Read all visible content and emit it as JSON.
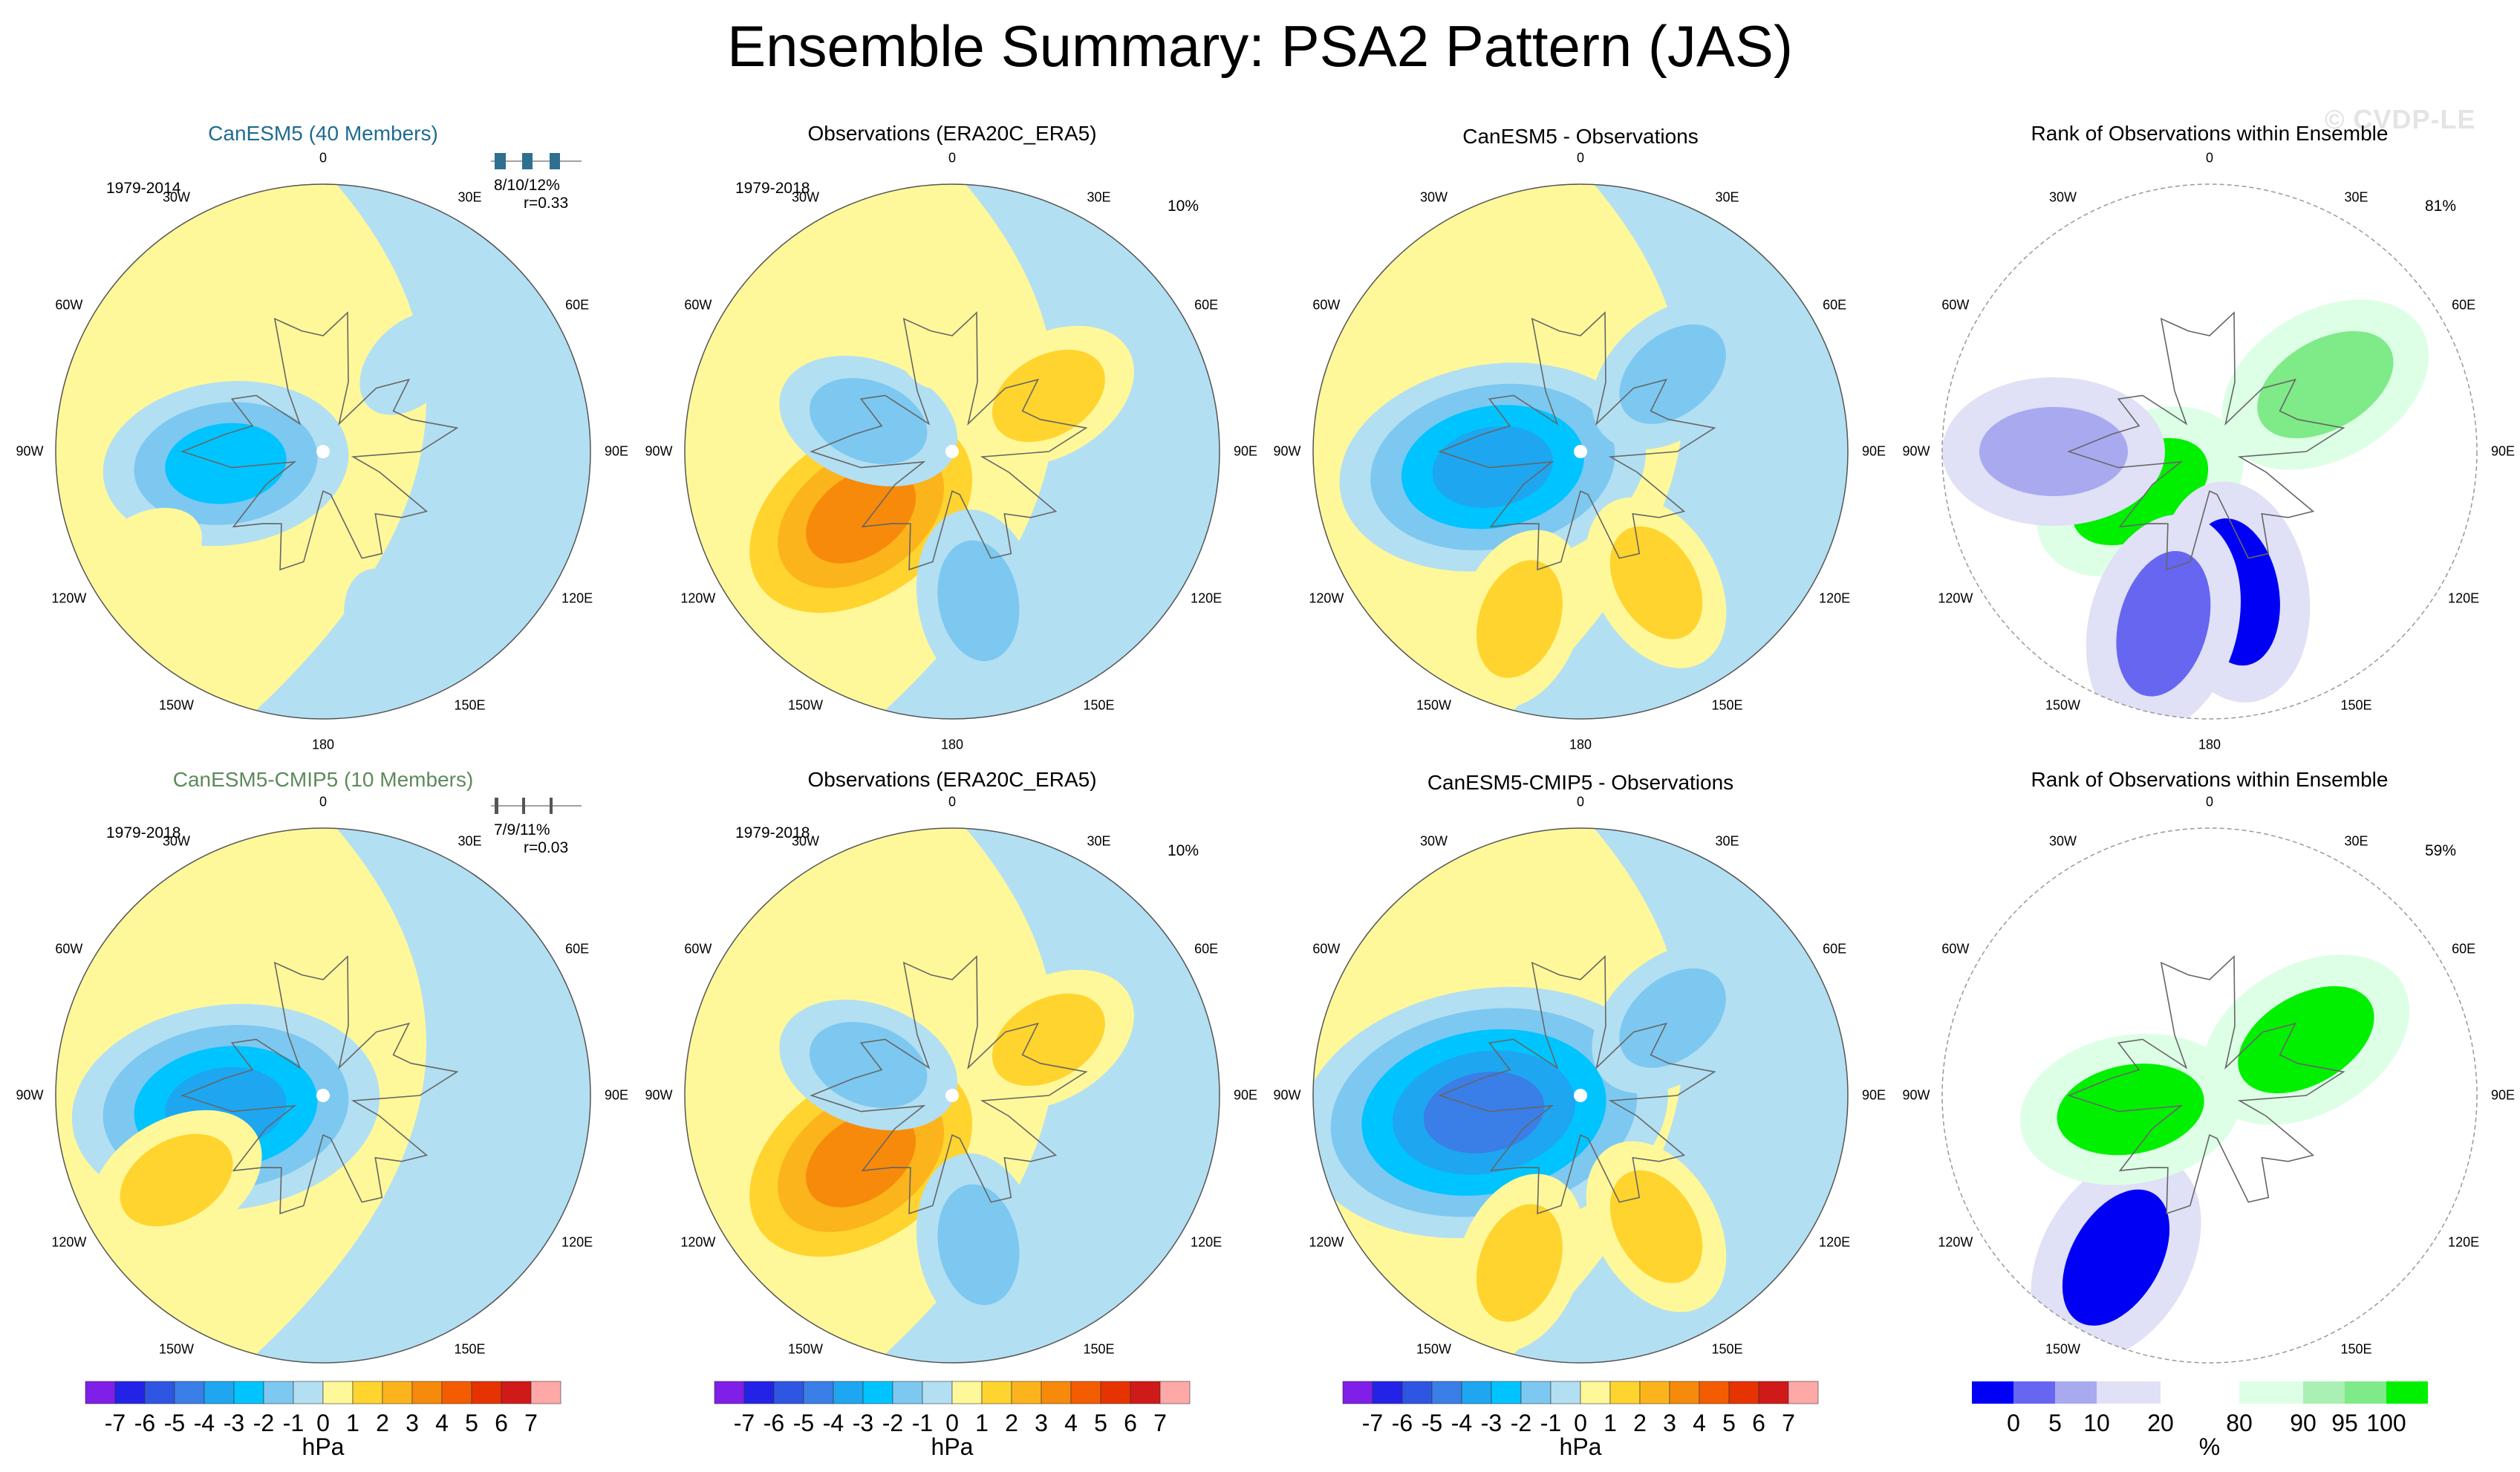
{
  "figure": {
    "title": "Ensemble Summary: PSA2 Pattern (JAS)",
    "watermark": "© CVDP-LE"
  },
  "longitude_labels": [
    "0",
    "30E",
    "60E",
    "90E",
    "120E",
    "150E",
    "180",
    "150W",
    "120W",
    "90W",
    "60W",
    "30W"
  ],
  "colors": {
    "hpa_scale": [
      "#7f1fe8",
      "#2323e8",
      "#2f55e3",
      "#3a7ee8",
      "#1ea6f0",
      "#00c4ff",
      "#7dc8f0",
      "#b3dff2",
      "#fff89a",
      "#ffd42e",
      "#fbb41c",
      "#f78a0a",
      "#f35d00",
      "#e63300",
      "#d01919",
      "#ffa8a8"
    ],
    "rank_scale": [
      "#0000f5",
      "#6666f0",
      "#a9a9f0",
      "#e0e0f6",
      "#ffffff",
      "#ddffe6",
      "#aaf0b4",
      "#7fea88",
      "#00f000"
    ],
    "title_blue": "#1f6b8f",
    "title_green": "#5c8a5c",
    "coast": "#666666"
  },
  "colorbars": {
    "hpa": {
      "tick_labels": [
        "-7",
        "-6",
        "-5",
        "-4",
        "-3",
        "-2",
        "-1",
        "0",
        "1",
        "2",
        "3",
        "4",
        "5",
        "6",
        "7"
      ],
      "unit": "hPa"
    },
    "rank": {
      "tick_labels": [
        "0",
        "5",
        "10",
        "20",
        "80",
        "90",
        "95",
        "100"
      ],
      "unit": "%"
    }
  },
  "chart_data": [
    {
      "type": "heatmap",
      "projection": "south-polar",
      "row": 1,
      "col": 1,
      "title": "CanESM5 (40 Members)",
      "period": "1979-2014",
      "stats": {
        "members": "8/10/12%",
        "r": "r=0.33"
      },
      "units": "hPa",
      "value_range": [
        -7,
        7
      ],
      "centers": [
        {
          "lon": -97,
          "colat": 22,
          "value": -3
        },
        {
          "lon": 45,
          "colat": 28,
          "value": -1
        },
        {
          "lon": 160,
          "colat": 42,
          "value": -1
        },
        {
          "lon": -120,
          "colat": 46,
          "value": 1
        }
      ]
    },
    {
      "type": "heatmap",
      "projection": "south-polar",
      "row": 1,
      "col": 2,
      "title": "Observations (ERA20C_ERA5)",
      "period": "1979-2018",
      "percent": "10%",
      "units": "hPa",
      "value_range": [
        -7,
        7
      ],
      "centers": [
        {
          "lon": -125,
          "colat": 25,
          "value": 4
        },
        {
          "lon": 60,
          "colat": 25,
          "value": 2
        },
        {
          "lon": 170,
          "colat": 34,
          "value": -2
        },
        {
          "lon": -70,
          "colat": 20,
          "value": -2
        },
        {
          "lon": -10,
          "colat": 28,
          "value": 1
        }
      ]
    },
    {
      "type": "heatmap",
      "projection": "south-polar",
      "row": 1,
      "col": 3,
      "title": "CanESM5 - Observations",
      "period": "",
      "percent": "",
      "units": "hPa",
      "value_range": [
        -7,
        7
      ],
      "centers": [
        {
          "lon": -100,
          "colat": 20,
          "value": -4
        },
        {
          "lon": 50,
          "colat": 27,
          "value": -2
        },
        {
          "lon": -160,
          "colat": 40,
          "value": 2
        },
        {
          "lon": 150,
          "colat": 34,
          "value": 2
        }
      ]
    },
    {
      "type": "heatmap",
      "projection": "south-polar",
      "row": 1,
      "col": 4,
      "title": "Rank of Observations within Ensemble",
      "period": "",
      "percent": "81%",
      "units": "%",
      "value_range": [
        0,
        100
      ],
      "regions": [
        {
          "lon": -120,
          "colat": 18,
          "rank": 100
        },
        {
          "lon": 60,
          "colat": 30,
          "rank": 95
        },
        {
          "lon": 170,
          "colat": 32,
          "rank": 0
        },
        {
          "lon": -165,
          "colat": 40,
          "rank": 5
        },
        {
          "lon": -90,
          "colat": 35,
          "rank": 10
        }
      ]
    },
    {
      "type": "heatmap",
      "projection": "south-polar",
      "row": 2,
      "col": 1,
      "title": "CanESM5-CMIP5 (10 Members)",
      "period": "1979-2018",
      "stats": {
        "members": "7/9/11%",
        "r": "r=0.03"
      },
      "units": "hPa",
      "value_range": [
        -7,
        7
      ],
      "centers": [
        {
          "lon": -97,
          "colat": 22,
          "value": -4
        },
        {
          "lon": -120,
          "colat": 38,
          "value": 2
        },
        {
          "lon": 80,
          "colat": 40,
          "value": -1
        }
      ]
    },
    {
      "type": "heatmap",
      "projection": "south-polar",
      "row": 2,
      "col": 2,
      "title": "Observations (ERA20C_ERA5)",
      "period": "1979-2018",
      "percent": "10%",
      "units": "hPa",
      "value_range": [
        -7,
        7
      ],
      "centers": [
        {
          "lon": -125,
          "colat": 25,
          "value": 4
        },
        {
          "lon": 60,
          "colat": 25,
          "value": 2
        },
        {
          "lon": 170,
          "colat": 34,
          "value": -2
        },
        {
          "lon": -70,
          "colat": 20,
          "value": -2
        }
      ]
    },
    {
      "type": "heatmap",
      "projection": "south-polar",
      "row": 2,
      "col": 3,
      "title": "CanESM5-CMIP5 - Observations",
      "period": "",
      "percent": "",
      "units": "hPa",
      "value_range": [
        -7,
        7
      ],
      "centers": [
        {
          "lon": -100,
          "colat": 22,
          "value": -5
        },
        {
          "lon": 50,
          "colat": 27,
          "value": -2
        },
        {
          "lon": -160,
          "colat": 40,
          "value": 2
        },
        {
          "lon": 150,
          "colat": 34,
          "value": 2
        }
      ]
    },
    {
      "type": "heatmap",
      "projection": "south-polar",
      "row": 2,
      "col": 4,
      "title": "Rank of Observations within Ensemble",
      "period": "",
      "percent": "59%",
      "units": "%",
      "value_range": [
        0,
        100
      ],
      "regions": [
        {
          "lon": -150,
          "colat": 42,
          "rank": 0
        },
        {
          "lon": 60,
          "colat": 25,
          "rank": 100
        },
        {
          "lon": -100,
          "colat": 18,
          "rank": 100
        }
      ]
    }
  ]
}
